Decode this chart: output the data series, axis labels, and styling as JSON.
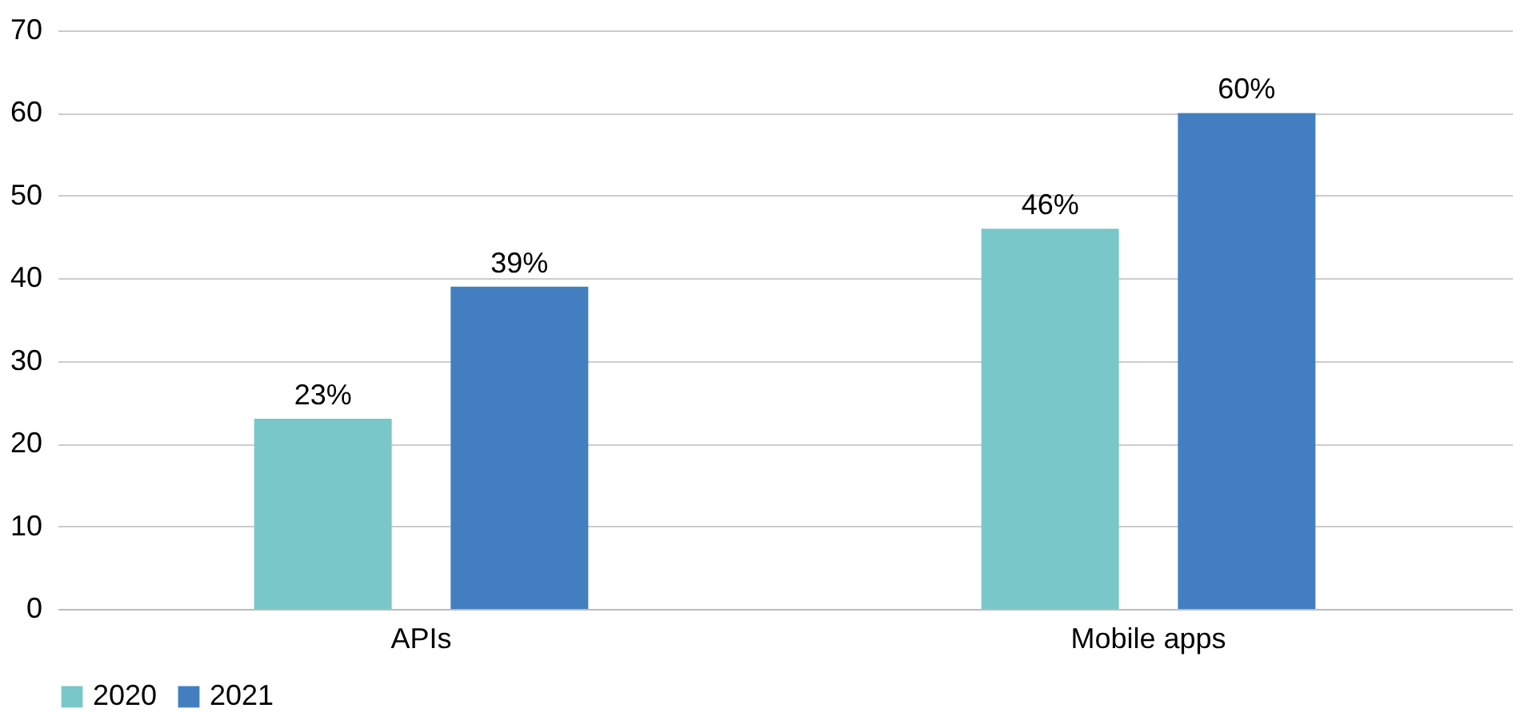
{
  "chart_data": {
    "type": "bar",
    "categories": [
      "APIs",
      "Mobile apps"
    ],
    "series": [
      {
        "name": "2020",
        "color": "#7ac7c9",
        "values": [
          23,
          46
        ],
        "value_labels": [
          "23%",
          "46%"
        ]
      },
      {
        "name": "2021",
        "color": "#437ec0",
        "values": [
          39,
          60
        ],
        "value_labels": [
          "39%",
          "60%"
        ]
      }
    ],
    "ylim": [
      0,
      70
    ],
    "yticks": [
      0,
      10,
      20,
      30,
      40,
      50,
      60,
      70
    ],
    "grid": "y",
    "legend": "bottom"
  }
}
